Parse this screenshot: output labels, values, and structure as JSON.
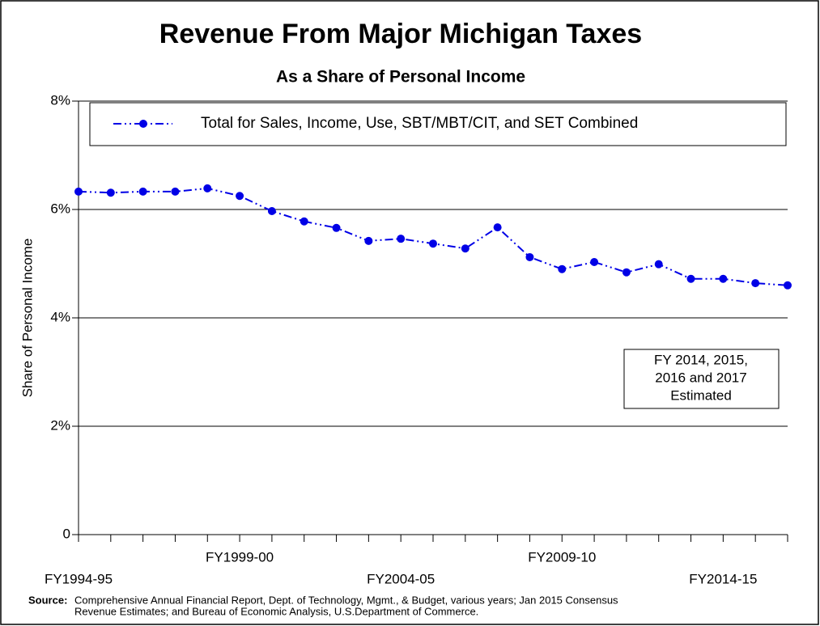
{
  "chart_data": {
    "type": "line",
    "title": "Revenue From Major Michigan Taxes",
    "subtitle": "As a Share of Personal Income",
    "y_axis_label": "Share of Personal Income",
    "categories": [
      "FY1994-95",
      null,
      null,
      null,
      null,
      "FY1999-00",
      null,
      null,
      null,
      null,
      "FY2004-05",
      null,
      null,
      null,
      null,
      "FY2009-10",
      null,
      null,
      null,
      null,
      "FY2014-15",
      null,
      null
    ],
    "series": [
      {
        "name": "Total for Sales, Income, Use, SBT/MBT/CIT, and SET Combined",
        "color": "#0000e6",
        "values": [
          6.33,
          6.31,
          6.33,
          6.33,
          6.39,
          6.25,
          5.97,
          5.78,
          5.66,
          5.42,
          5.46,
          5.37,
          5.28,
          5.67,
          5.12,
          4.9,
          5.03,
          4.84,
          4.99,
          4.72,
          4.72,
          4.64,
          4.6
        ]
      }
    ],
    "ylim": [
      0,
      8
    ],
    "yticks": [
      0,
      {
        "value": 2,
        "label": "2%"
      },
      {
        "value": 4,
        "label": "4%"
      },
      {
        "value": 6,
        "label": "6%"
      },
      {
        "value": 8,
        "label": "8%"
      }
    ],
    "grid": true,
    "legend": "top",
    "annotation": [
      "FY 2014, 2015,",
      "2016 and 2017",
      "Estimated"
    ],
    "source_label": "Source:",
    "source_text": [
      "Comprehensive Annual Financial Report, Dept. of Technology, Mgmt., & Budget, various years; Jan 2015 Consensus",
      "Revenue Estimates; and Bureau of Economic Analysis, U.S.Department of Commerce."
    ]
  }
}
